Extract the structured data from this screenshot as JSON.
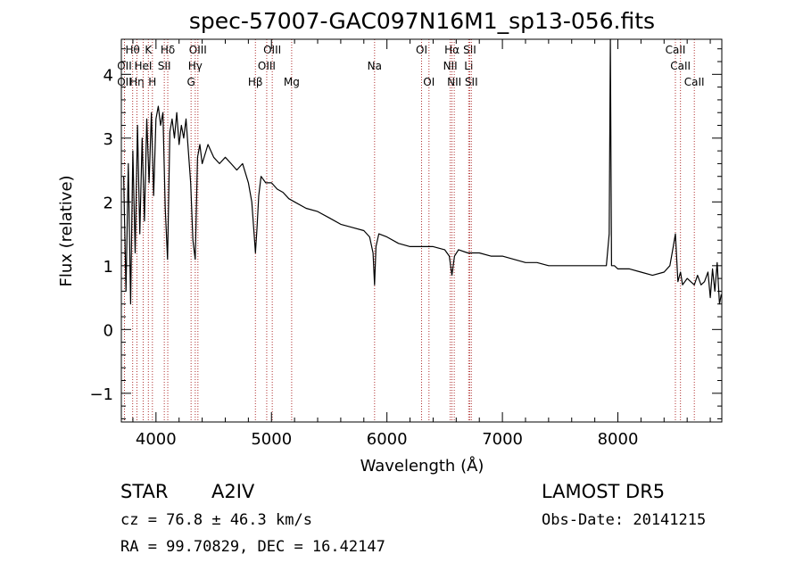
{
  "chart_data": {
    "type": "line",
    "title": "spec-57007-GAC097N16M1_sp13-056.fits",
    "xlabel": "Wavelength (Å)",
    "ylabel": "Flux (relative)",
    "xlim": [
      3700,
      8900
    ],
    "ylim": [
      -1.45,
      4.55
    ],
    "x_ticks": [
      4000,
      5000,
      6000,
      7000,
      8000
    ],
    "y_ticks": [
      -1,
      0,
      1,
      2,
      3,
      4
    ],
    "grid": false,
    "line_color": "#000000",
    "marker_line_color": "#b03030",
    "series": [
      {
        "x": [
          3720,
          3740,
          3760,
          3780,
          3800,
          3820,
          3840,
          3860,
          3880,
          3900,
          3920,
          3940,
          3960,
          3980,
          4000,
          4020,
          4040,
          4060,
          4080,
          4100,
          4120,
          4140,
          4160,
          4180,
          4200,
          4220,
          4240,
          4260,
          4280,
          4300,
          4320,
          4340,
          4360,
          4380,
          4400,
          4450,
          4500,
          4550,
          4600,
          4650,
          4700,
          4750,
          4800,
          4830,
          4850,
          4861,
          4875,
          4890,
          4910,
          4950,
          5000,
          5050,
          5100,
          5150,
          5200,
          5300,
          5400,
          5500,
          5600,
          5700,
          5800,
          5850,
          5880,
          5893,
          5905,
          5930,
          6000,
          6100,
          6200,
          6300,
          6400,
          6500,
          6540,
          6563,
          6585,
          6620,
          6700,
          6800,
          6900,
          7000,
          7100,
          7200,
          7300,
          7400,
          7500,
          7600,
          7700,
          7800,
          7850,
          7900,
          7925,
          7935,
          7945,
          7970,
          8000,
          8100,
          8200,
          8300,
          8400,
          8450,
          8480,
          8498,
          8520,
          8542,
          8560,
          8600,
          8630,
          8662,
          8690,
          8720,
          8750,
          8780,
          8800,
          8820,
          8840,
          8860,
          8880,
          8895
        ],
        "y": [
          2.4,
          0.6,
          2.6,
          0.4,
          2.8,
          1.2,
          3.2,
          1.5,
          3.0,
          1.7,
          3.3,
          2.3,
          3.4,
          2.1,
          3.3,
          3.5,
          3.2,
          3.4,
          1.9,
          1.1,
          3.1,
          3.3,
          3.0,
          3.4,
          2.9,
          3.2,
          3.0,
          3.3,
          2.8,
          2.3,
          1.4,
          1.1,
          2.7,
          2.9,
          2.6,
          2.9,
          2.7,
          2.6,
          2.7,
          2.6,
          2.5,
          2.6,
          2.3,
          2.0,
          1.5,
          1.2,
          1.6,
          2.1,
          2.4,
          2.3,
          2.3,
          2.2,
          2.15,
          2.05,
          2.0,
          1.9,
          1.85,
          1.75,
          1.65,
          1.6,
          1.55,
          1.45,
          1.2,
          0.7,
          1.3,
          1.5,
          1.45,
          1.35,
          1.3,
          1.3,
          1.3,
          1.25,
          1.15,
          0.85,
          1.15,
          1.25,
          1.2,
          1.2,
          1.15,
          1.15,
          1.1,
          1.05,
          1.05,
          1.0,
          1.0,
          1.0,
          1.0,
          1.0,
          1.0,
          1.0,
          1.5,
          4.55,
          1.0,
          1.0,
          0.95,
          0.95,
          0.9,
          0.85,
          0.9,
          1.0,
          1.3,
          1.5,
          0.75,
          0.9,
          0.7,
          0.8,
          0.75,
          0.7,
          0.85,
          0.7,
          0.75,
          0.9,
          0.5,
          0.95,
          0.6,
          1.05,
          0.4,
          0.55
        ]
      }
    ],
    "line_markers": [
      {
        "label": "Hθ",
        "wavelength": 3798,
        "row": 0
      },
      {
        "label": "OII",
        "wavelength": 3727,
        "row": 1
      },
      {
        "label": "OII",
        "wavelength": 3727,
        "row": 2
      },
      {
        "label": "Hη",
        "wavelength": 3835,
        "row": 2
      },
      {
        "label": "HeI",
        "wavelength": 3889,
        "row": 1
      },
      {
        "label": "K",
        "wavelength": 3934,
        "row": 0
      },
      {
        "label": "H",
        "wavelength": 3969,
        "row": 2
      },
      {
        "label": "Hδ",
        "wavelength": 4102,
        "row": 0
      },
      {
        "label": "SII",
        "wavelength": 4072,
        "row": 1
      },
      {
        "label": "OIII",
        "wavelength": 4363,
        "row": 0
      },
      {
        "label": "Hγ",
        "wavelength": 4340,
        "row": 1
      },
      {
        "label": "G",
        "wavelength": 4304,
        "row": 2
      },
      {
        "label": "OIII",
        "wavelength": 5007,
        "row": 0
      },
      {
        "label": "OIII",
        "wavelength": 4959,
        "row": 1
      },
      {
        "label": "Hβ",
        "wavelength": 4861,
        "row": 2
      },
      {
        "label": "Mg",
        "wavelength": 5175,
        "row": 2
      },
      {
        "label": "Na",
        "wavelength": 5893,
        "row": 1
      },
      {
        "label": "OI",
        "wavelength": 6300,
        "row": 0
      },
      {
        "label": "OI",
        "wavelength": 6364,
        "row": 2
      },
      {
        "label": "Hα",
        "wavelength": 6563,
        "row": 0
      },
      {
        "label": "NII",
        "wavelength": 6548,
        "row": 1
      },
      {
        "label": "NII",
        "wavelength": 6583,
        "row": 2
      },
      {
        "label": "SII",
        "wavelength": 6717,
        "row": 0
      },
      {
        "label": "Li",
        "wavelength": 6708,
        "row": 1
      },
      {
        "label": "SII",
        "wavelength": 6731,
        "row": 2
      },
      {
        "label": "CaII",
        "wavelength": 8498,
        "row": 0
      },
      {
        "label": "CaII",
        "wavelength": 8542,
        "row": 1
      },
      {
        "label": "CaII",
        "wavelength": 8662,
        "row": 2
      }
    ]
  },
  "info": {
    "class": "STAR",
    "subclass": "A2IV",
    "survey": "LAMOST DR5",
    "cz": "cz = 76.8 ± 46.3 km/s",
    "obs_date": "Obs-Date: 20141215",
    "coords": "RA =  99.70829, DEC =  16.42147"
  }
}
